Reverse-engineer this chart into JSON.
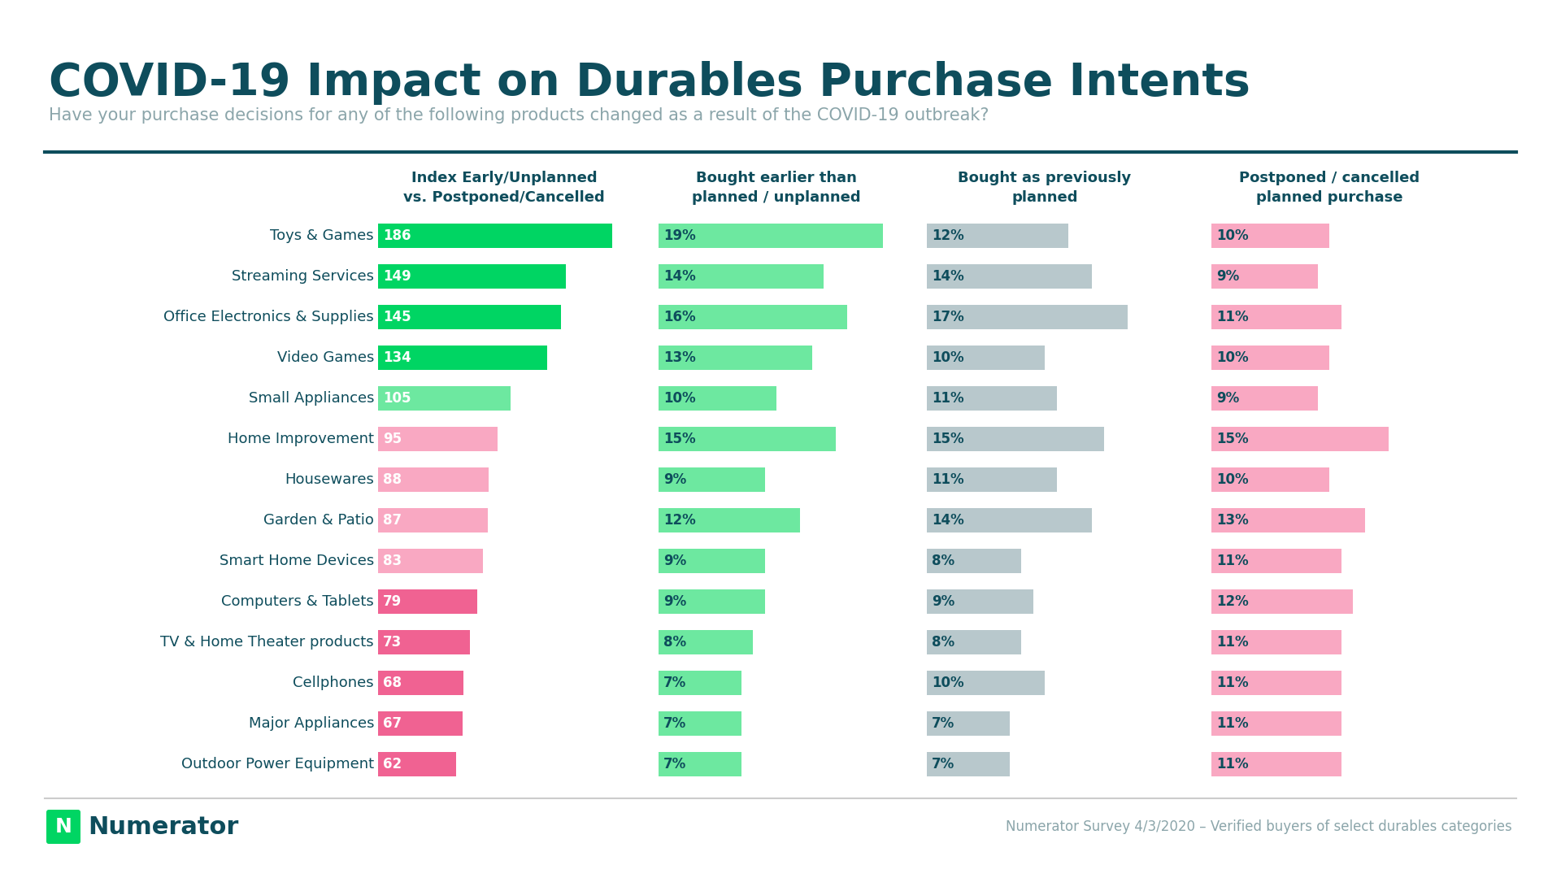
{
  "title": "COVID-19 Impact on Durables Purchase Intents",
  "subtitle": "Have your purchase decisions for any of the following products changed as a result of the COVID-19 outbreak?",
  "footer": "Numerator Survey 4/3/2020 – Verified buyers of select durables categories",
  "col_headers": [
    "Index Early/Unplanned\nvs. Postponed/Cancelled",
    "Bought earlier than\nplanned / unplanned",
    "Bought as previously\nplanned",
    "Postponed / cancelled\nplanned purchase"
  ],
  "categories": [
    "Toys & Games",
    "Streaming Services",
    "Office Electronics & Supplies",
    "Video Games",
    "Small Appliances",
    "Home Improvement",
    "Housewares",
    "Garden & Patio",
    "Smart Home Devices",
    "Computers & Tablets",
    "TV & Home Theater products",
    "Cellphones",
    "Major Appliances",
    "Outdoor Power Equipment"
  ],
  "index_values": [
    186,
    149,
    145,
    134,
    105,
    95,
    88,
    87,
    83,
    79,
    73,
    68,
    67,
    62
  ],
  "index_colors": [
    "#00d563",
    "#00d563",
    "#00d563",
    "#00d563",
    "#6de8a0",
    "#f9a8c2",
    "#f9a8c2",
    "#f9a8c2",
    "#f9a8c2",
    "#f06292",
    "#f06292",
    "#f06292",
    "#f06292",
    "#f06292"
  ],
  "bought_early": [
    19,
    14,
    16,
    13,
    10,
    15,
    9,
    12,
    9,
    9,
    8,
    7,
    7,
    7
  ],
  "bought_planned": [
    12,
    14,
    17,
    10,
    11,
    15,
    11,
    14,
    8,
    9,
    8,
    10,
    7,
    7
  ],
  "postponed": [
    10,
    9,
    11,
    10,
    9,
    15,
    10,
    13,
    11,
    12,
    11,
    11,
    11,
    11
  ],
  "color_early_green": "#6de8a0",
  "color_planned_gray": "#b8c8cc",
  "color_postponed_pink": "#f9a8c2",
  "color_title": "#0e4d5c",
  "color_subtitle": "#8ba5aa",
  "color_header": "#0e4d5c",
  "color_category": "#0e4d5c",
  "color_bar_text_white": "#ffffff",
  "color_bar_text_dark": "#0e4d5c",
  "background_color": "#ffffff",
  "title_fontsize": 40,
  "subtitle_fontsize": 15,
  "header_fontsize": 13,
  "category_fontsize": 13,
  "bar_value_fontsize": 12,
  "numerator_color": "#0e4d5c",
  "numerator_green": "#00d563",
  "divider_color": "#0e4d5c",
  "bottom_line_color": "#cccccc"
}
